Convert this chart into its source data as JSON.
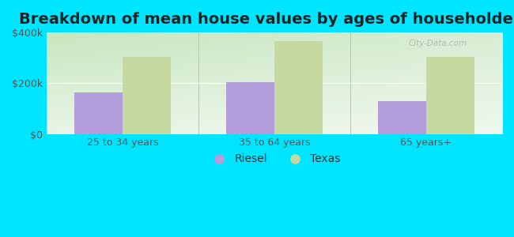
{
  "title": "Breakdown of mean house values by ages of householders",
  "categories": [
    "25 to 34 years",
    "35 to 64 years",
    "65 years+"
  ],
  "riesel_values": [
    165000,
    205000,
    130000
  ],
  "texas_values": [
    305000,
    365000,
    305000
  ],
  "riesel_color": "#b39ddb",
  "texas_color": "#c5d9a0",
  "background_color": "#00e5ff",
  "ylim": [
    0,
    400000
  ],
  "yticks": [
    0,
    200000,
    400000
  ],
  "ytick_labels": [
    "$0",
    "$200k",
    "$400k"
  ],
  "legend_labels": [
    "Riesel",
    "Texas"
  ],
  "bar_width": 0.32,
  "title_fontsize": 14,
  "tick_fontsize": 9,
  "legend_fontsize": 10,
  "gradient_colors": [
    "#c8e6c0",
    "#e8f5e0",
    "#f5fff0",
    "#ffffff"
  ],
  "watermark": "City-Data.com"
}
